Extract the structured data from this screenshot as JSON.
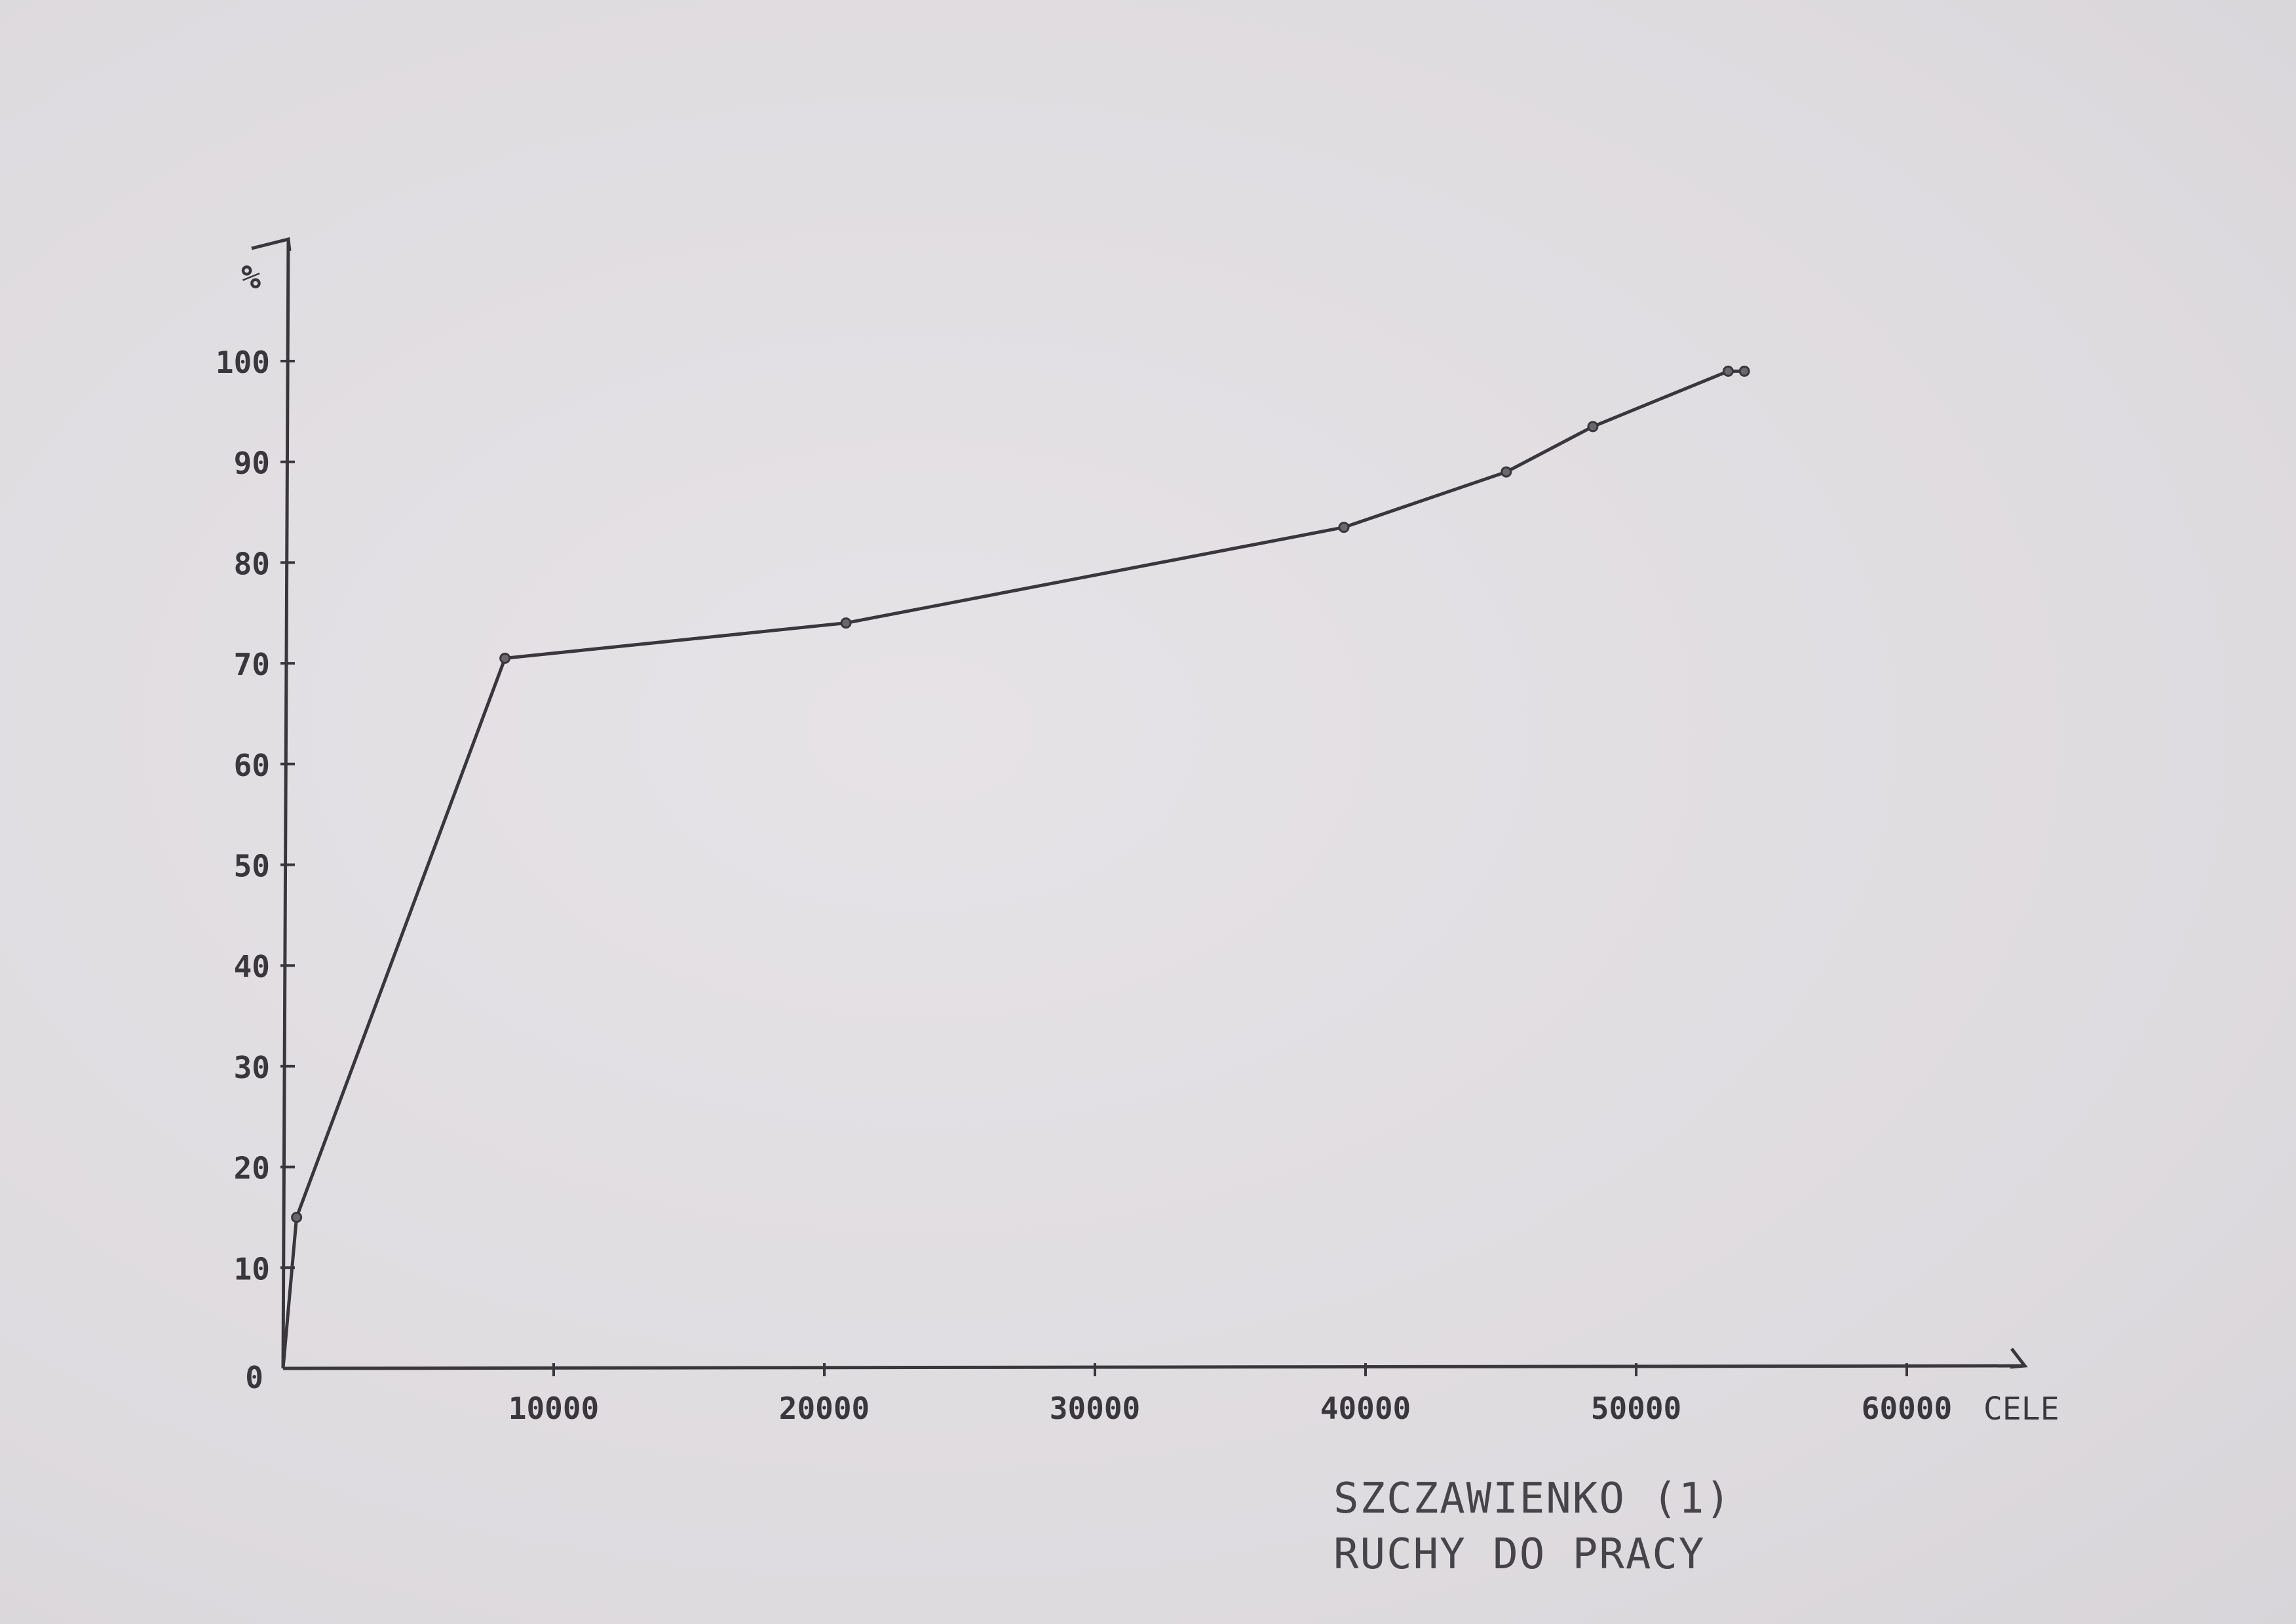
{
  "chart_data": {
    "type": "line",
    "title": "",
    "ylabel": "%",
    "xlabel": "CELE",
    "xlim": [
      0,
      65000
    ],
    "ylim": [
      0,
      100
    ],
    "grid": false,
    "y_ticks": [
      0,
      10,
      20,
      30,
      40,
      50,
      60,
      70,
      80,
      90,
      100
    ],
    "y_tick_labels": [
      "0",
      "10",
      "20",
      "30",
      "40",
      "50",
      "60",
      "70",
      "80",
      "90",
      "100"
    ],
    "x_ticks": [
      10000,
      20000,
      30000,
      40000,
      50000,
      60000
    ],
    "x_tick_labels": [
      "10000",
      "20000",
      "30000",
      "40000",
      "50000",
      "60000"
    ],
    "x": [
      0,
      500,
      8200,
      20800,
      39200,
      45200,
      48400,
      53400,
      54000
    ],
    "y": [
      0,
      15,
      70.5,
      74,
      83.5,
      89,
      93.5,
      99,
      99
    ],
    "marker_indices": [
      1,
      2,
      3,
      4,
      5,
      6,
      7,
      8
    ]
  },
  "caption": {
    "line1": "SZCZAWIENKO (1)",
    "line2": "RUCHY DO PRACY"
  },
  "colors": {
    "ink": "#3a373c",
    "paper": "#e2dfe3"
  }
}
